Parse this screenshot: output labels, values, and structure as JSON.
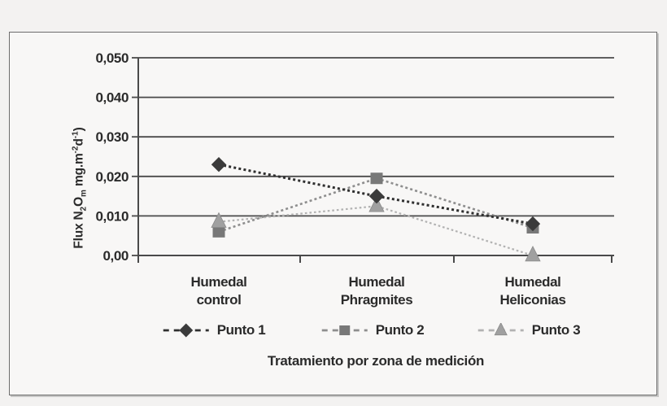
{
  "colors": {
    "background": "#f3f2f1",
    "frame_background": "#f8f7f6",
    "frame_border": "#6d6d6d",
    "axis": "#4a4a4a",
    "gridline": "#4a4a4a",
    "text": "#2b2b2b"
  },
  "chart_data": {
    "type": "line",
    "title": "",
    "xlabel": "Tratamiento por zona de medición",
    "ylabel": "Flux N2Om mg.m-2d-1)",
    "ylabel_parts": [
      {
        "text": "Flux N",
        "script": "normal"
      },
      {
        "text": "2",
        "script": "sub"
      },
      {
        "text": "O",
        "script": "normal"
      },
      {
        "text": "m",
        "script": "sub"
      },
      {
        "text": " mg.m",
        "script": "normal"
      },
      {
        "text": "-2",
        "script": "sup"
      },
      {
        "text": "d",
        "script": "normal"
      },
      {
        "text": "-1",
        "script": "sup"
      },
      {
        "text": ")",
        "script": "normal"
      }
    ],
    "ylim": [
      0,
      0.05
    ],
    "decimal_separator": ",",
    "yticks": [
      {
        "value": 0.0,
        "label": "0,00"
      },
      {
        "value": 0.01,
        "label": "0,010"
      },
      {
        "value": 0.02,
        "label": "0,020"
      },
      {
        "value": 0.03,
        "label": "0,030"
      },
      {
        "value": 0.04,
        "label": "0,040"
      },
      {
        "value": 0.05,
        "label": "0,050"
      }
    ],
    "categories": [
      [
        "Humedal",
        "control"
      ],
      [
        "Humedal",
        "Phragmites"
      ],
      [
        "Humedal",
        "Heliconias"
      ]
    ],
    "grid": "horizontal",
    "legend_position": "bottom",
    "series": [
      {
        "name": "Punto 1",
        "marker": "diamond",
        "marker_color": "#3b3b3b",
        "line_color": "#2f2f2f",
        "values": [
          0.023,
          0.015,
          0.008
        ]
      },
      {
        "name": "Punto 2",
        "marker": "square",
        "marker_color": "#787878",
        "line_color": "#8e8e8e",
        "values": [
          0.006,
          0.0195,
          0.007
        ]
      },
      {
        "name": "Punto 3",
        "marker": "triangle",
        "marker_color": "#a0a0a0",
        "line_color": "#b2b2b2",
        "values": [
          0.0085,
          0.0125,
          0.0
        ]
      }
    ]
  }
}
